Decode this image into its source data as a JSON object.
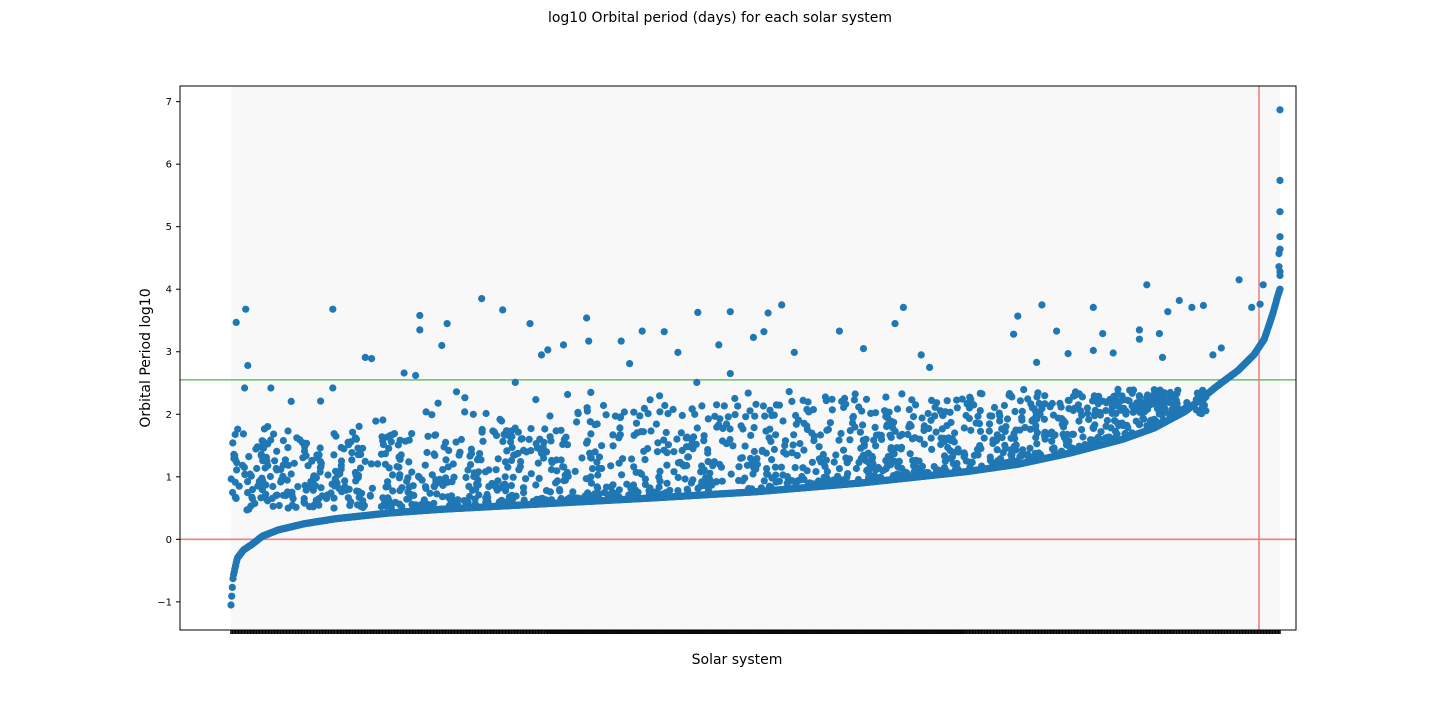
{
  "chart_data": {
    "type": "scatter",
    "title": "log10 Orbital period (days) for each solar system",
    "xlabel": "Solar system",
    "ylabel": "Orbital Period log10",
    "ylim": [
      -1.45,
      7.25
    ],
    "yticks": [
      {
        "value": -1,
        "label": "−1"
      },
      {
        "value": 0,
        "label": "0"
      },
      {
        "value": 1,
        "label": "1"
      },
      {
        "value": 2,
        "label": "2"
      },
      {
        "value": 3,
        "label": "3"
      },
      {
        "value": 4,
        "label": "4"
      },
      {
        "value": 5,
        "label": "5"
      },
      {
        "value": 6,
        "label": "6"
      },
      {
        "value": 7,
        "label": "7"
      }
    ],
    "n_systems": 2900,
    "x_tick_labels": "none (dense, unreadable)",
    "reference_lines": [
      {
        "orientation": "horizontal",
        "value": 0,
        "color": "#f08080"
      },
      {
        "orientation": "horizontal",
        "value": 2.55,
        "color": "#6cbd6c"
      },
      {
        "orientation": "vertical",
        "value": "final solar system",
        "color": "#f08080"
      }
    ],
    "marker_color": "#1f77b4",
    "sorted_min_curve": [
      [
        0.0,
        -1.05
      ],
      [
        0.002,
        -0.6
      ],
      [
        0.006,
        -0.3
      ],
      [
        0.012,
        -0.17
      ],
      [
        0.02,
        -0.08
      ],
      [
        0.03,
        0.05
      ],
      [
        0.045,
        0.15
      ],
      [
        0.07,
        0.25
      ],
      [
        0.1,
        0.33
      ],
      [
        0.15,
        0.42
      ],
      [
        0.2,
        0.48
      ],
      [
        0.3,
        0.57
      ],
      [
        0.4,
        0.66
      ],
      [
        0.5,
        0.76
      ],
      [
        0.6,
        0.9
      ],
      [
        0.7,
        1.08
      ],
      [
        0.75,
        1.2
      ],
      [
        0.8,
        1.38
      ],
      [
        0.85,
        1.6
      ],
      [
        0.88,
        1.78
      ],
      [
        0.91,
        2.05
      ],
      [
        0.94,
        2.45
      ],
      [
        0.96,
        2.7
      ],
      [
        0.975,
        2.95
      ],
      [
        0.985,
        3.2
      ],
      [
        0.993,
        3.6
      ],
      [
        0.998,
        3.9
      ],
      [
        1.0,
        4.0
      ]
    ],
    "high_outliers": [
      [
        1.0,
        6.87
      ],
      [
        1.0,
        5.74
      ],
      [
        1.0,
        5.24
      ],
      [
        1.0,
        4.84
      ],
      [
        1.0,
        4.64
      ],
      [
        0.999,
        4.57
      ],
      [
        0.999,
        4.36
      ],
      [
        1.0,
        4.28
      ],
      [
        1.0,
        4.22
      ]
    ],
    "scatter_above": [
      [
        0.005,
        3.47
      ],
      [
        0.014,
        3.68
      ],
      [
        0.016,
        2.78
      ],
      [
        0.013,
        2.42
      ],
      [
        0.038,
        2.42
      ],
      [
        0.097,
        3.68
      ],
      [
        0.097,
        2.42
      ],
      [
        0.128,
        2.91
      ],
      [
        0.134,
        2.89
      ],
      [
        0.165,
        2.66
      ],
      [
        0.176,
        2.62
      ],
      [
        0.18,
        3.58
      ],
      [
        0.18,
        3.35
      ],
      [
        0.201,
        3.1
      ],
      [
        0.206,
        3.45
      ],
      [
        0.215,
        2.36
      ],
      [
        0.239,
        3.85
      ],
      [
        0.259,
        3.67
      ],
      [
        0.271,
        2.51
      ],
      [
        0.285,
        3.45
      ],
      [
        0.296,
        2.95
      ],
      [
        0.302,
        3.03
      ],
      [
        0.317,
        3.11
      ],
      [
        0.341,
        3.17
      ],
      [
        0.339,
        3.54
      ],
      [
        0.343,
        2.35
      ],
      [
        0.372,
        3.17
      ],
      [
        0.38,
        2.81
      ],
      [
        0.392,
        3.33
      ],
      [
        0.413,
        3.32
      ],
      [
        0.426,
        2.99
      ],
      [
        0.444,
        2.51
      ],
      [
        0.445,
        3.63
      ],
      [
        0.465,
        3.11
      ],
      [
        0.476,
        2.65
      ],
      [
        0.476,
        3.64
      ],
      [
        0.498,
        3.23
      ],
      [
        0.508,
        3.32
      ],
      [
        0.512,
        3.62
      ],
      [
        0.525,
        3.75
      ],
      [
        0.537,
        2.99
      ],
      [
        0.58,
        3.33
      ],
      [
        0.603,
        3.05
      ],
      [
        0.633,
        3.45
      ],
      [
        0.641,
        3.71
      ],
      [
        0.658,
        2.95
      ],
      [
        0.666,
        2.75
      ],
      [
        0.746,
        3.28
      ],
      [
        0.75,
        3.57
      ],
      [
        0.768,
        2.83
      ],
      [
        0.773,
        3.75
      ],
      [
        0.787,
        3.33
      ],
      [
        0.798,
        2.97
      ],
      [
        0.822,
        3.02
      ],
      [
        0.822,
        3.71
      ],
      [
        0.831,
        3.29
      ],
      [
        0.841,
        2.98
      ],
      [
        0.866,
        3.2
      ],
      [
        0.866,
        3.35
      ],
      [
        0.873,
        4.07
      ],
      [
        0.885,
        3.29
      ],
      [
        0.888,
        2.91
      ],
      [
        0.893,
        3.64
      ],
      [
        0.904,
        3.82
      ],
      [
        0.916,
        3.71
      ],
      [
        0.927,
        3.74
      ],
      [
        0.936,
        2.95
      ],
      [
        0.944,
        3.06
      ],
      [
        0.961,
        4.15
      ],
      [
        0.973,
        3.71
      ],
      [
        0.981,
        3.76
      ],
      [
        0.984,
        4.07
      ]
    ],
    "cloud_notes": "Dense cloud of secondary planets between log10 period 0.4 and 2.4 spread across all systems, most dense near 0.8 to 1.6"
  }
}
